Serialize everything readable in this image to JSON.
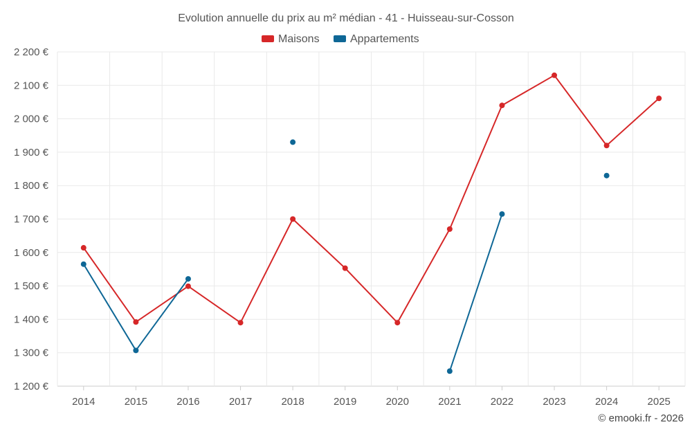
{
  "chart_data": {
    "type": "line",
    "title": "Evolution annuelle du prix au m² médian - 41 - Huisseau-sur-Cosson",
    "categories": [
      "2014",
      "2015",
      "2016",
      "2017",
      "2018",
      "2019",
      "2020",
      "2021",
      "2022",
      "2023",
      "2024",
      "2025"
    ],
    "ylim": [
      1200,
      2200
    ],
    "yticks": [
      1200,
      1300,
      1400,
      1500,
      1600,
      1700,
      1800,
      1900,
      2000,
      2100,
      2200
    ],
    "ytick_labels": [
      "1 200 €",
      "1 300 €",
      "1 400 €",
      "1 500 €",
      "1 600 €",
      "1 700 €",
      "1 800 €",
      "1 900 €",
      "2 000 €",
      "2 100 €",
      "2 200 €"
    ],
    "grid": true,
    "legend_position": "top-center",
    "series": [
      {
        "name": "Maisons",
        "color": "#d62728",
        "values": [
          1614,
          1392,
          1499,
          1390,
          1700,
          1553,
          1390,
          1670,
          2040,
          2130,
          1920,
          2061
        ]
      },
      {
        "name": "Appartements",
        "color": "#0e6796",
        "values": [
          1565,
          1307,
          1521,
          null,
          1930,
          null,
          null,
          1245,
          1715,
          null,
          1830,
          null
        ]
      }
    ]
  },
  "credit": "© emooki.fr - 2026"
}
